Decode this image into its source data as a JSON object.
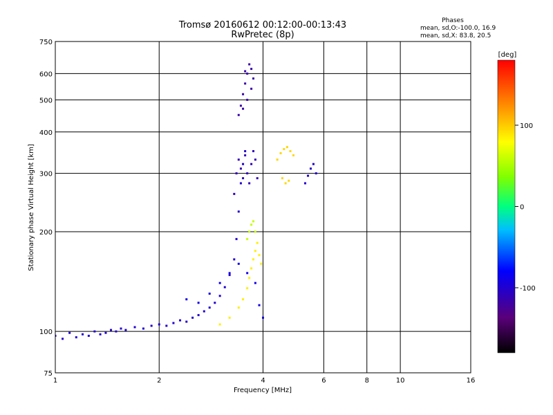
{
  "chart_data": {
    "type": "scatter",
    "title": "Tromsø 20160612 00:12:00-00:13:43",
    "subtitle": "RwPretec (8p)",
    "xlabel": "Frequency [MHz]",
    "ylabel": "Stationary phase Virtual Height [km]",
    "x_scale": "log",
    "y_scale": "log",
    "xlim": [
      1,
      16
    ],
    "ylim": [
      75,
      750
    ],
    "x_ticks": [
      1,
      2,
      4,
      6,
      8,
      10,
      16
    ],
    "x_tick_labels": [
      "1",
      "2",
      "4",
      "6",
      "8",
      "10",
      "16"
    ],
    "y_ticks": [
      75,
      100,
      200,
      300,
      400,
      500,
      600,
      750
    ],
    "y_tick_labels": [
      "75",
      "100",
      "200",
      "300",
      "400",
      "500",
      "600",
      "750"
    ],
    "grid": true,
    "stats_header": "Phases",
    "stats_lines": [
      "mean, sd,O:-100.0, 16.9",
      "mean, sd,X:  83.8, 20.5"
    ],
    "colorbar": {
      "label": "[deg]",
      "range": [
        -180,
        180
      ],
      "ticks": [
        100,
        0,
        -100
      ],
      "tick_labels": [
        "100",
        "0",
        "-100"
      ]
    },
    "traces": [
      {
        "phase": -100,
        "points": [
          [
            1.0,
            97
          ],
          [
            1.05,
            95
          ],
          [
            1.1,
            99
          ],
          [
            1.15,
            96
          ],
          [
            1.2,
            98
          ],
          [
            1.25,
            97
          ],
          [
            1.3,
            100
          ],
          [
            1.35,
            98
          ],
          [
            1.4,
            99
          ],
          [
            1.45,
            101
          ],
          [
            1.5,
            100
          ],
          [
            1.55,
            102
          ],
          [
            1.6,
            101
          ],
          [
            1.7,
            103
          ],
          [
            1.8,
            102
          ],
          [
            1.9,
            104
          ],
          [
            2.0,
            105
          ],
          [
            2.1,
            104
          ],
          [
            2.2,
            106
          ],
          [
            2.3,
            108
          ],
          [
            2.4,
            107
          ],
          [
            2.5,
            110
          ],
          [
            2.6,
            112
          ],
          [
            2.7,
            115
          ],
          [
            2.8,
            118
          ],
          [
            2.9,
            122
          ],
          [
            3.0,
            128
          ],
          [
            3.1,
            136
          ],
          [
            3.2,
            148
          ],
          [
            3.3,
            165
          ],
          [
            3.35,
            190
          ],
          [
            3.4,
            230
          ],
          [
            3.45,
            280
          ],
          [
            3.5,
            320
          ],
          [
            3.55,
            350
          ]
        ]
      },
      {
        "phase": -110,
        "points": [
          [
            3.3,
            260
          ],
          [
            3.35,
            300
          ],
          [
            3.4,
            330
          ],
          [
            3.45,
            310
          ],
          [
            3.5,
            290
          ],
          [
            3.55,
            340
          ],
          [
            3.6,
            300
          ],
          [
            3.65,
            280
          ],
          [
            3.7,
            320
          ],
          [
            3.75,
            350
          ],
          [
            3.8,
            330
          ],
          [
            3.85,
            290
          ]
        ]
      },
      {
        "phase": -115,
        "points": [
          [
            3.4,
            450
          ],
          [
            3.45,
            480
          ],
          [
            3.5,
            520
          ],
          [
            3.55,
            560
          ],
          [
            3.6,
            600
          ],
          [
            3.65,
            640
          ],
          [
            3.7,
            620
          ],
          [
            3.75,
            580
          ],
          [
            3.5,
            470
          ],
          [
            3.6,
            500
          ],
          [
            3.7,
            540
          ],
          [
            3.55,
            610
          ]
        ]
      },
      {
        "phase": -90,
        "points": [
          [
            2.4,
            125
          ],
          [
            2.6,
            122
          ],
          [
            2.8,
            130
          ],
          [
            3.0,
            140
          ],
          [
            3.2,
            150
          ],
          [
            3.4,
            160
          ],
          [
            3.6,
            150
          ],
          [
            3.8,
            140
          ],
          [
            3.9,
            120
          ],
          [
            4.0,
            110
          ]
        ]
      },
      {
        "phase": 85,
        "points": [
          [
            3.0,
            105
          ],
          [
            3.2,
            110
          ],
          [
            3.4,
            118
          ],
          [
            3.5,
            125
          ],
          [
            3.6,
            135
          ],
          [
            3.65,
            145
          ],
          [
            3.7,
            155
          ],
          [
            3.75,
            165
          ],
          [
            3.8,
            175
          ],
          [
            3.85,
            185
          ],
          [
            3.9,
            170
          ],
          [
            3.95,
            160
          ]
        ]
      },
      {
        "phase": 60,
        "points": [
          [
            3.6,
            190
          ],
          [
            3.65,
            200
          ],
          [
            3.7,
            210
          ],
          [
            3.75,
            215
          ],
          [
            3.8,
            200
          ]
        ]
      },
      {
        "phase": 95,
        "points": [
          [
            4.4,
            330
          ],
          [
            4.5,
            345
          ],
          [
            4.6,
            355
          ],
          [
            4.7,
            360
          ],
          [
            4.8,
            350
          ],
          [
            4.9,
            340
          ],
          [
            4.55,
            290
          ],
          [
            4.65,
            280
          ],
          [
            4.75,
            285
          ]
        ]
      },
      {
        "phase": -100,
        "points": [
          [
            5.3,
            280
          ],
          [
            5.4,
            295
          ],
          [
            5.5,
            310
          ],
          [
            5.6,
            320
          ],
          [
            5.7,
            300
          ]
        ]
      }
    ]
  }
}
